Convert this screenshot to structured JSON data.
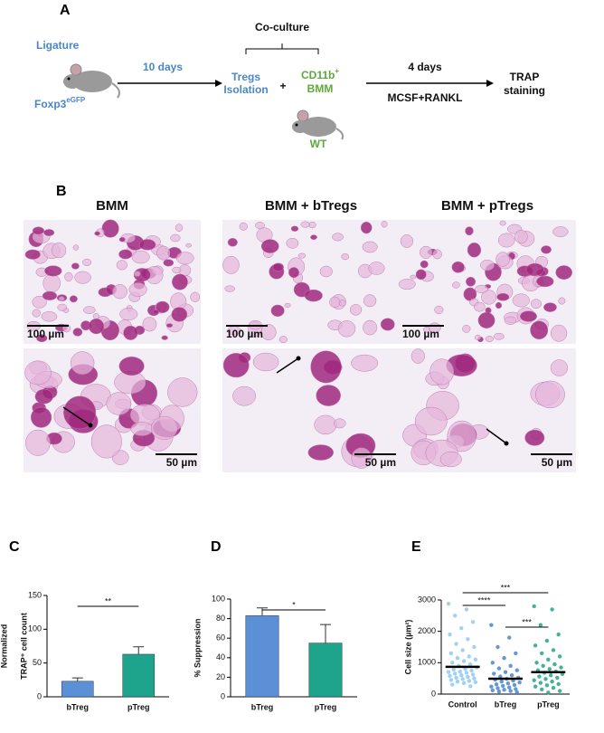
{
  "panel_a": {
    "label": "A",
    "ligature": "Ligature",
    "mouse_1": "Foxp3",
    "mouse_1_sup": "eGFP",
    "step_1": "10 days",
    "coculture": "Co-culture",
    "tregs": [
      "Tregs",
      "Isolation"
    ],
    "plus": "+",
    "bmm": [
      "CD11b",
      "+",
      "BMM"
    ],
    "mouse_2": "WT",
    "step_2": "4 days",
    "step_2_media": "MCSF+RANKL",
    "readout": [
      "TRAP",
      "staining"
    ]
  },
  "panel_b": {
    "label": "B",
    "columns": [
      "BMM",
      "BMM + bTregs",
      "BMM + pTregs"
    ],
    "scale_top": "100 µm",
    "scale_bottom": "50 µm"
  },
  "chart_data": [
    {
      "type": "bar",
      "label": "C",
      "ylabel": [
        "Normalized",
        "TRAP⁺ cell count"
      ],
      "categories": [
        "bTreg",
        "pTreg"
      ],
      "values": [
        23,
        63
      ],
      "errors": [
        5,
        11
      ],
      "colors": [
        "#5b8fd6",
        "#1ea38c"
      ],
      "ylim": [
        0,
        150
      ],
      "yticks": [
        0,
        50,
        100,
        150
      ],
      "significance": [
        "**"
      ]
    },
    {
      "type": "bar",
      "label": "D",
      "ylabel": [
        "% Suppression"
      ],
      "categories": [
        "bTreg",
        "pTreg"
      ],
      "values": [
        83,
        55
      ],
      "errors": [
        8,
        19
      ],
      "colors": [
        "#5b8fd6",
        "#1ea38c"
      ],
      "ylim": [
        0,
        100
      ],
      "yticks": [
        0,
        20,
        40,
        60,
        80,
        100
      ],
      "significance": [
        "*"
      ]
    },
    {
      "type": "strip",
      "label": "E",
      "ylabel": [
        "Cell size (µm²)"
      ],
      "categories": [
        "Control",
        "bTreg",
        "pTreg"
      ],
      "series": [
        {
          "color": "#8ec9ee",
          "mean": 870,
          "values": [
            2880,
            2700,
            2500,
            2300,
            2100,
            1900,
            1750,
            1600,
            1500,
            1400,
            1300,
            1200,
            1150,
            1100,
            1050,
            1000,
            950,
            900,
            850,
            800,
            780,
            750,
            720,
            700,
            680,
            650,
            620,
            600,
            580,
            550,
            520,
            500,
            480,
            450,
            420,
            400,
            380,
            350,
            300,
            250
          ]
        },
        {
          "color": "#4a86c8",
          "mean": 490,
          "values": [
            2200,
            1800,
            1500,
            1300,
            1150,
            1000,
            900,
            820,
            760,
            700,
            650,
            600,
            560,
            520,
            490,
            460,
            430,
            400,
            370,
            340,
            310,
            290,
            260,
            240,
            210,
            190,
            160,
            140,
            120,
            100,
            80,
            60
          ]
        },
        {
          "color": "#26a38a",
          "mean": 700,
          "values": [
            2800,
            2700,
            2200,
            1900,
            1700,
            1550,
            1400,
            1300,
            1200,
            1100,
            1000,
            950,
            900,
            850,
            800,
            760,
            720,
            680,
            640,
            600,
            560,
            520,
            480,
            440,
            400,
            360,
            320,
            280,
            240,
            200,
            150,
            100,
            50
          ]
        }
      ],
      "ylim": [
        0,
        3000
      ],
      "yticks": [
        0,
        1000,
        2000,
        3000
      ],
      "significance": [
        "***",
        "****",
        "***"
      ]
    }
  ]
}
